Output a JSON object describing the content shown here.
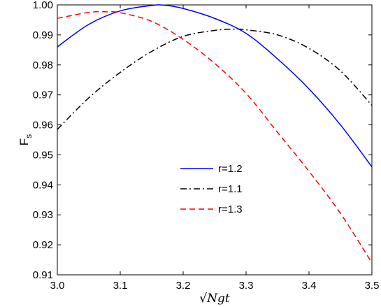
{
  "chart_data": {
    "type": "line",
    "xlabel": "√Ngt",
    "ylabel": "F",
    "ylabel_subscript": "s",
    "xlim": [
      3.0,
      3.5
    ],
    "ylim": [
      0.91,
      1.0
    ],
    "xticks": [
      "3.0",
      "3.1",
      "3.2",
      "3.3",
      "3.4",
      "3.5"
    ],
    "yticks": [
      "0.91",
      "0.92",
      "0.93",
      "0.94",
      "0.95",
      "0.96",
      "0.97",
      "0.98",
      "0.99",
      "1.00"
    ],
    "grid": false,
    "legend_position": "center",
    "series": [
      {
        "name": "r=1.2",
        "color": "#0000ff",
        "dash": "solid",
        "x": [
          3.0,
          3.05,
          3.1,
          3.15,
          3.17,
          3.2,
          3.25,
          3.3,
          3.35,
          3.4,
          3.45,
          3.5
        ],
        "y": [
          0.986,
          0.9935,
          0.998,
          0.9998,
          0.9999,
          0.9988,
          0.9955,
          0.9905,
          0.982,
          0.972,
          0.96,
          0.946
        ]
      },
      {
        "name": "r=1.1",
        "color": "#000000",
        "dash": "dashdot",
        "x": [
          3.0,
          3.05,
          3.1,
          3.15,
          3.2,
          3.25,
          3.28,
          3.3,
          3.35,
          3.4,
          3.45,
          3.5
        ],
        "y": [
          0.9585,
          0.969,
          0.9775,
          0.9845,
          0.9895,
          0.9915,
          0.9919,
          0.9917,
          0.99,
          0.9855,
          0.978,
          0.9665
        ]
      },
      {
        "name": "r=1.3",
        "color": "#ff0000",
        "dash": "dashed",
        "x": [
          3.0,
          3.05,
          3.08,
          3.1,
          3.15,
          3.2,
          3.25,
          3.3,
          3.35,
          3.4,
          3.45,
          3.5
        ],
        "y": [
          0.9955,
          0.9975,
          0.9977,
          0.9974,
          0.9945,
          0.9885,
          0.9805,
          0.9705,
          0.9575,
          0.9445,
          0.9305,
          0.914
        ]
      }
    ]
  }
}
